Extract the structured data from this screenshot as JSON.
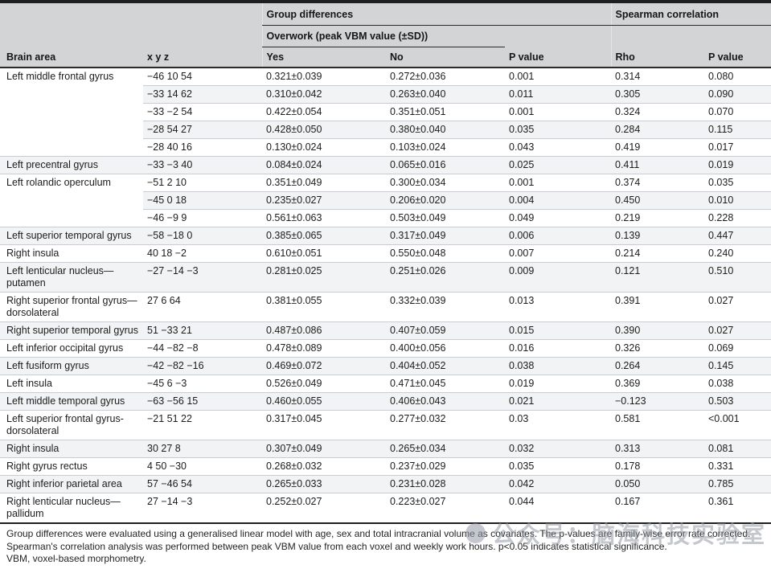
{
  "table": {
    "header": {
      "group_differences": "Group differences",
      "spearman_correlation": "Spearman correlation",
      "overwork": "Overwork (peak VBM value (±SD))",
      "columns": [
        "Brain area",
        "x y z",
        "Yes",
        "No",
        "P value",
        "Rho",
        "P value"
      ]
    },
    "groups": [
      {
        "area": "Left middle frontal gyrus",
        "rows": [
          [
            "−46 10 54",
            "0.321±0.039",
            "0.272±0.036",
            "0.001",
            "0.314",
            "0.080"
          ],
          [
            "−33 14 62",
            "0.310±0.042",
            "0.263±0.040",
            "0.011",
            "0.305",
            "0.090"
          ],
          [
            "−33 −2 54",
            "0.422±0.054",
            "0.351±0.051",
            "0.001",
            "0.324",
            "0.070"
          ],
          [
            "−28 54 27",
            "0.428±0.050",
            "0.380±0.040",
            "0.035",
            "0.284",
            "0.115"
          ],
          [
            "−28 40 16",
            "0.130±0.024",
            "0.103±0.024",
            "0.043",
            "0.419",
            "0.017"
          ]
        ]
      },
      {
        "area": "Left precentral gyrus",
        "rows": [
          [
            "−33 −3 40",
            "0.084±0.024",
            "0.065±0.016",
            "0.025",
            "0.411",
            "0.019"
          ]
        ]
      },
      {
        "area": "Left rolandic operculum",
        "rows": [
          [
            "−51 2 10",
            "0.351±0.049",
            "0.300±0.034",
            "0.001",
            "0.374",
            "0.035"
          ],
          [
            "−45 0 18",
            "0.235±0.027",
            "0.206±0.020",
            "0.004",
            "0.450",
            "0.010"
          ],
          [
            "−46 −9 9",
            "0.561±0.063",
            "0.503±0.049",
            "0.049",
            "0.219",
            "0.228"
          ]
        ]
      },
      {
        "area": "Left superior temporal gyrus",
        "rows": [
          [
            "−58 −18 0",
            "0.385±0.065",
            "0.317±0.049",
            "0.006",
            "0.139",
            "0.447"
          ]
        ]
      },
      {
        "area": "Right insula",
        "rows": [
          [
            "40 18 −2",
            "0.610±0.051",
            "0.550±0.048",
            "0.007",
            "0.214",
            "0.240"
          ]
        ]
      },
      {
        "area": "Left lenticular nucleus—putamen",
        "rows": [
          [
            "−27 −14 −3",
            "0.281±0.025",
            "0.251±0.026",
            "0.009",
            "0.121",
            "0.510"
          ]
        ]
      },
      {
        "area": "Right superior frontal gyrus—dorsolateral",
        "rows": [
          [
            "27 6 64",
            "0.381±0.055",
            "0.332±0.039",
            "0.013",
            "0.391",
            "0.027"
          ]
        ]
      },
      {
        "area": "Right superior temporal gyrus",
        "rows": [
          [
            "51 −33 21",
            "0.487±0.086",
            "0.407±0.059",
            "0.015",
            "0.390",
            "0.027"
          ]
        ]
      },
      {
        "area": "Left inferior occipital gyrus",
        "rows": [
          [
            "−44 −82 −8",
            "0.478±0.089",
            "0.400±0.056",
            "0.016",
            "0.326",
            "0.069"
          ]
        ]
      },
      {
        "area": "Left fusiform gyrus",
        "rows": [
          [
            "−42 −82 −16",
            "0.469±0.072",
            "0.404±0.052",
            "0.038",
            "0.264",
            "0.145"
          ]
        ]
      },
      {
        "area": "Left insula",
        "rows": [
          [
            "−45 6 −3",
            "0.526±0.049",
            "0.471±0.045",
            "0.019",
            "0.369",
            "0.038"
          ]
        ]
      },
      {
        "area": "Left middle temporal gyrus",
        "rows": [
          [
            "−63 −56 15",
            "0.460±0.055",
            "0.406±0.043",
            "0.021",
            "−0.123",
            "0.503"
          ]
        ]
      },
      {
        "area": "Left superior frontal gyrus-dorsolateral",
        "rows": [
          [
            "−21 51 22",
            "0.317±0.045",
            "0.277±0.032",
            "0.03",
            "0.581",
            "<0.001"
          ]
        ]
      },
      {
        "area": "Right insula",
        "rows": [
          [
            "30 27 8",
            "0.307±0.049",
            "0.265±0.034",
            "0.032",
            "0.313",
            "0.081"
          ]
        ]
      },
      {
        "area": "Right gyrus rectus",
        "rows": [
          [
            "4 50 −30",
            "0.268±0.032",
            "0.237±0.029",
            "0.035",
            "0.178",
            "0.331"
          ]
        ]
      },
      {
        "area": "Right inferior parietal area",
        "rows": [
          [
            "57 −46 54",
            "0.265±0.033",
            "0.231±0.028",
            "0.042",
            "0.050",
            "0.785"
          ]
        ]
      },
      {
        "area": "Right lenticular nucleus—pallidum",
        "rows": [
          [
            "27 −14 −3",
            "0.252±0.027",
            "0.223±0.027",
            "0.044",
            "0.167",
            "0.361"
          ]
        ]
      }
    ],
    "footnotes": [
      "Group differences were evaluated using a generalised linear model with age, sex and total intracranial volume as covariates. The p-values are family-wise error rate corrected.",
      "Spearman's correlation analysis was performed between peak VBM value from each voxel and weekly work hours. p<0.05 indicates statistical significance.",
      "VBM, voxel-based morphometry."
    ]
  },
  "watermark": {
    "icon": "circle-logo",
    "text": "公众号：脑海科技实验室"
  },
  "colors": {
    "header_bg": "#d3d4d6",
    "row_alt_bg": "#f1f3f5",
    "rule_dark": "#1f1f1f",
    "rule_light": "#c9ccd0",
    "text": "#1c1c1c"
  }
}
